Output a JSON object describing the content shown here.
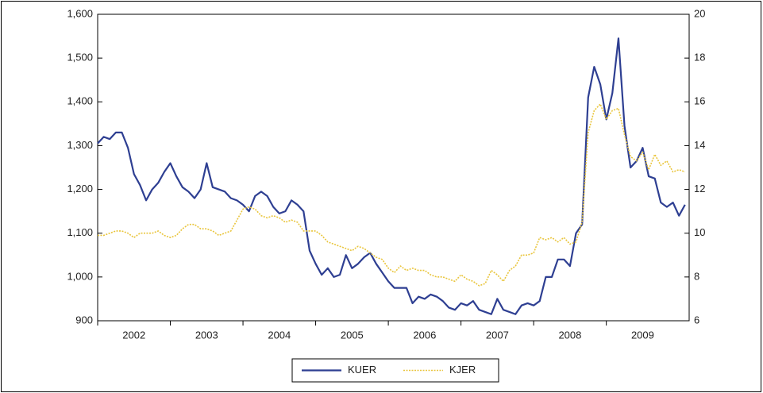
{
  "chart_data": {
    "type": "line",
    "x": [
      2002,
      2002.083,
      2002.167,
      2002.25,
      2002.333,
      2002.417,
      2002.5,
      2002.583,
      2002.667,
      2002.75,
      2002.833,
      2002.917,
      2003,
      2003.083,
      2003.167,
      2003.25,
      2003.333,
      2003.417,
      2003.5,
      2003.583,
      2003.667,
      2003.75,
      2003.833,
      2003.917,
      2004,
      2004.083,
      2004.167,
      2004.25,
      2004.333,
      2004.417,
      2004.5,
      2004.583,
      2004.667,
      2004.75,
      2004.833,
      2004.917,
      2005,
      2005.083,
      2005.167,
      2005.25,
      2005.333,
      2005.417,
      2005.5,
      2005.583,
      2005.667,
      2005.75,
      2005.833,
      2005.917,
      2006,
      2006.083,
      2006.167,
      2006.25,
      2006.333,
      2006.417,
      2006.5,
      2006.583,
      2006.667,
      2006.75,
      2006.833,
      2006.917,
      2007,
      2007.083,
      2007.167,
      2007.25,
      2007.333,
      2007.417,
      2007.5,
      2007.583,
      2007.667,
      2007.75,
      2007.833,
      2007.917,
      2008,
      2008.083,
      2008.167,
      2008.25,
      2008.333,
      2008.417,
      2008.5,
      2008.583,
      2008.667,
      2008.75,
      2008.833,
      2008.917,
      2009,
      2009.083,
      2009.167,
      2009.25,
      2009.333,
      2009.417,
      2009.5,
      2009.583,
      2009.667,
      2009.75,
      2009.833,
      2009.917,
      2010,
      2010.083
    ],
    "series": [
      {
        "name": "KUER",
        "color": "#2e3f92",
        "axis": "y",
        "dash": "solid",
        "values": [
          1305,
          1320,
          1315,
          1330,
          1330,
          1295,
          1235,
          1210,
          1175,
          1200,
          1215,
          1240,
          1260,
          1230,
          1205,
          1195,
          1180,
          1200,
          1260,
          1205,
          1200,
          1195,
          1180,
          1175,
          1165,
          1150,
          1185,
          1195,
          1185,
          1160,
          1145,
          1150,
          1175,
          1165,
          1150,
          1060,
          1030,
          1005,
          1020,
          1000,
          1005,
          1050,
          1020,
          1030,
          1045,
          1055,
          1030,
          1010,
          990,
          975,
          975,
          975,
          940,
          955,
          950,
          960,
          955,
          945,
          930,
          925,
          940,
          935,
          945,
          925,
          920,
          915,
          950,
          925,
          920,
          915,
          935,
          940,
          935,
          945,
          1000,
          1000,
          1040,
          1040,
          1025,
          1100,
          1120,
          1410,
          1480,
          1440,
          1360,
          1420,
          1545,
          1345,
          1250,
          1265,
          1295,
          1230,
          1225,
          1170,
          1160,
          1170,
          1140,
          1165
        ]
      },
      {
        "name": "KJER",
        "color": "#e9c53c",
        "axis": "y2",
        "dash": "dotted",
        "values": [
          9.9,
          9.9,
          10,
          10.1,
          10.1,
          10,
          9.8,
          10,
          10,
          10,
          10.1,
          9.9,
          9.8,
          9.9,
          10.2,
          10.4,
          10.4,
          10.2,
          10.2,
          10.1,
          9.9,
          10,
          10.1,
          10.6,
          11.1,
          11.2,
          11.1,
          10.8,
          10.7,
          10.8,
          10.7,
          10.5,
          10.6,
          10.5,
          10.1,
          10.1,
          10.1,
          9.9,
          9.6,
          9.5,
          9.4,
          9.3,
          9.2,
          9.4,
          9.3,
          9.1,
          8.9,
          8.8,
          8.4,
          8.2,
          8.5,
          8.3,
          8.4,
          8.3,
          8.3,
          8.1,
          8,
          8,
          7.9,
          7.8,
          8.1,
          7.9,
          7.8,
          7.6,
          7.7,
          8.3,
          8.1,
          7.8,
          8.3,
          8.5,
          9,
          9,
          9.1,
          9.8,
          9.7,
          9.8,
          9.6,
          9.8,
          9.5,
          9.6,
          10.5,
          14.6,
          15.6,
          15.9,
          15.2,
          15.6,
          15.7,
          14.5,
          13.5,
          13.3,
          13.7,
          12.9,
          13.6,
          13.1,
          13.3,
          12.8,
          12.9,
          12.8
        ]
      }
    ],
    "xlim": [
      2002,
      2010.14
    ],
    "xticks": [
      2002,
      2003,
      2004,
      2005,
      2006,
      2007,
      2008,
      2009
    ],
    "ylim": [
      900,
      1600
    ],
    "yticks": [
      900,
      {
        "value": 1000,
        "label": "1,000"
      },
      {
        "value": 1100,
        "label": "1,100"
      },
      {
        "value": 1200,
        "label": "1,200"
      },
      {
        "value": 1300,
        "label": "1,300"
      },
      {
        "value": 1400,
        "label": "1,400"
      },
      {
        "value": 1500,
        "label": "1,500"
      },
      {
        "value": 1600,
        "label": "1,600"
      }
    ],
    "y2lim": [
      6,
      20
    ],
    "y2ticks": [
      6,
      8,
      10,
      12,
      14,
      16,
      18,
      20
    ],
    "legend": "bottom",
    "grid": false
  }
}
